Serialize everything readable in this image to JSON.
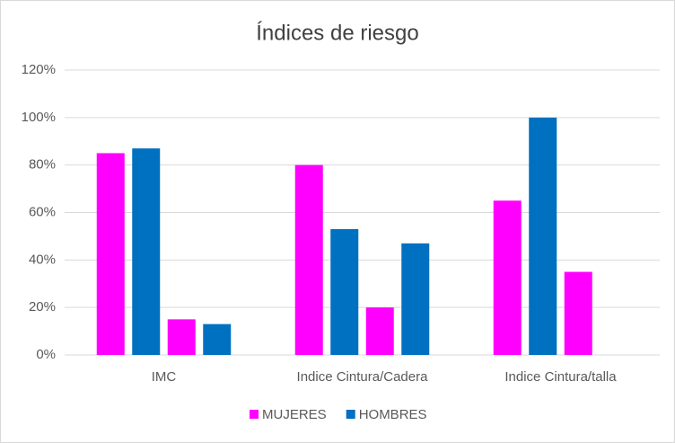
{
  "chart_data": {
    "type": "bar",
    "title": "Índices de riesgo",
    "categories": [
      "IMC",
      "Indice Cintura/Cadera",
      "Indice Cintura/talla"
    ],
    "series": [
      {
        "name": "MUJERES",
        "color": "#ff00ff",
        "values": [
          85,
          80,
          65
        ]
      },
      {
        "name": "HOMBRES",
        "color": "#0070c0",
        "values": [
          87,
          53,
          100
        ]
      },
      {
        "color": "#ff00ff",
        "values": [
          15,
          20,
          35
        ]
      },
      {
        "color": "#0070c0",
        "values": [
          13,
          47,
          null
        ]
      }
    ],
    "ylim": [
      0,
      120
    ],
    "yticks": [
      {
        "value": 0,
        "label": "0%"
      },
      {
        "value": 20,
        "label": "20%"
      },
      {
        "value": 40,
        "label": "40%"
      },
      {
        "value": 60,
        "label": "60%"
      },
      {
        "value": 80,
        "label": "80%"
      },
      {
        "value": 100,
        "label": "100%"
      },
      {
        "value": 120,
        "label": "120%"
      }
    ],
    "grid": true,
    "legend": "bottom"
  }
}
